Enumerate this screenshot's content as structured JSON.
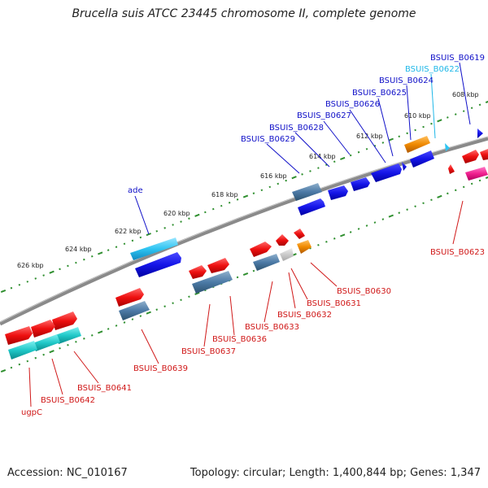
{
  "title": "Brucella suis ATCC 23445 chromosome II, complete genome",
  "footer": {
    "accession": "Accession: NC_010167",
    "topology": "Topology: circular; Length: 1,400,844 bp; Genes: 1,347"
  },
  "colors": {
    "backbone": "#8a8a8a",
    "tick": "#2f8f2f",
    "label_blue": "#1010c8",
    "label_red": "#d01818",
    "label_cyan": "#20b8e8"
  },
  "ticks": [
    "608 kbp",
    "610 kbp",
    "612 kbp",
    "614 kbp",
    "616 kbp",
    "618 kbp",
    "620 kbp",
    "622 kbp",
    "624 kbp",
    "626 kbp"
  ],
  "gene_labels": {
    "BSUIS_B0619": "BSUIS_B0619",
    "BSUIS_B0622": "BSUIS_B0622",
    "BSUIS_B0624": "BSUIS_B0624",
    "BSUIS_B0625": "BSUIS_B0625",
    "BSUIS_B0626": "BSUIS_B0626",
    "BSUIS_B0627": "BSUIS_B0627",
    "BSUIS_B0628": "BSUIS_B0628",
    "BSUIS_B0629": "BSUIS_B0629",
    "ade": "ade",
    "BSUIS_B0623": "BSUIS_B0623",
    "BSUIS_B0630": "BSUIS_B0630",
    "BSUIS_B0631": "BSUIS_B0631",
    "BSUIS_B0632": "BSUIS_B0632",
    "BSUIS_B0633": "BSUIS_B0633",
    "BSUIS_B0636": "BSUIS_B0636",
    "BSUIS_B0637": "BSUIS_B0637",
    "BSUIS_B0639": "BSUIS_B0639",
    "BSUIS_B0641": "BSUIS_B0641",
    "BSUIS_B0642": "BSUIS_B0642",
    "ugpC": "ugpC"
  }
}
